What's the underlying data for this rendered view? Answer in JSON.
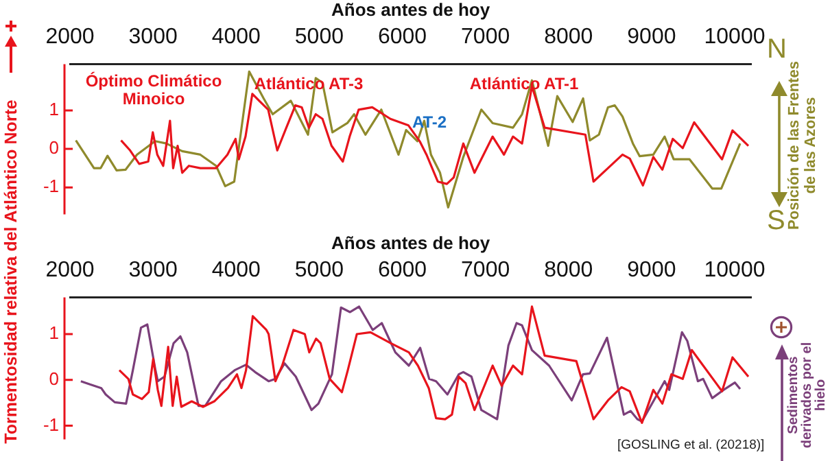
{
  "chart_data": [
    {
      "type": "line",
      "xlabel": "Años antes de hoy",
      "ylabel": "Tormentosidad relativa del Atlántico Norte",
      "xlim": [
        2000,
        10200
      ],
      "xticks": [
        2000,
        3000,
        4000,
        5000,
        6000,
        7000,
        8000,
        9000,
        10000
      ],
      "ylim": [
        -1.7,
        2.2
      ],
      "yticks": [
        -1,
        0,
        1
      ],
      "grid": false,
      "legend": "right",
      "marker": "none",
      "line_style": "solid",
      "series": [
        {
          "color": "#e8141c",
          "x": [
            2615,
            2724,
            2833,
            2942,
            2997,
            3051,
            3122,
            3204,
            3242,
            3296,
            3351,
            3432,
            3569,
            3759,
            3895,
            3993,
            4032,
            4113,
            4195,
            4277,
            4386,
            4495,
            4604,
            4713,
            4790,
            4876,
            4958,
            5039,
            5148,
            5284,
            5366,
            5475,
            5638,
            5856,
            6074,
            6209,
            6291,
            6427,
            6536,
            6619,
            6734,
            6869,
            7087,
            7223,
            7332,
            7441,
            7560,
            7713,
            8203,
            8301,
            8475,
            8650,
            8737,
            8896,
            9021,
            9130,
            9255,
            9375,
            9512,
            9848,
            9974,
            10165
          ],
          "values": [
            0.22,
            -0.04,
            -0.39,
            -0.33,
            0.43,
            -0.15,
            -0.44,
            0.73,
            -0.5,
            0.08,
            -0.62,
            -0.44,
            -0.5,
            -0.5,
            -0.15,
            0.26,
            -0.27,
            0.32,
            1.43,
            1.25,
            1.02,
            -0.04,
            0.55,
            1.13,
            1.08,
            0.55,
            0.9,
            0.78,
            0.08,
            -0.33,
            0.32,
            1.02,
            1.08,
            0.78,
            0.61,
            0.2,
            -0.15,
            -0.85,
            -0.91,
            -0.74,
            0.14,
            -0.62,
            0.32,
            -0.15,
            0.32,
            0.14,
            1.63,
            0.55,
            0.37,
            -0.85,
            -0.5,
            -0.15,
            -0.25,
            -0.95,
            -0.21,
            -0.54,
            0.26,
            0.02,
            0.69,
            -0.27,
            0.48,
            0.08
          ]
        },
        {
          "name": "Posición de las Frentes de las Azores",
          "color": "#8f8a2c",
          "x": [
            2071,
            2289,
            2370,
            2452,
            2561,
            2670,
            2806,
            3024,
            3160,
            3351,
            3569,
            3759,
            3868,
            3977,
            4157,
            4331,
            4440,
            4658,
            4865,
            4958,
            5039,
            5159,
            5338,
            5420,
            5556,
            5747,
            5954,
            6046,
            6182,
            6264,
            6345,
            6454,
            6552,
            6734,
            6951,
            7087,
            7332,
            7441,
            7560,
            7756,
            7865,
            8050,
            8176,
            8257,
            8366,
            8475,
            8557,
            8650,
            8775,
            8857,
            9021,
            9157,
            9266,
            9457,
            9730,
            9839,
            10066
          ],
          "values": [
            0.22,
            -0.5,
            -0.5,
            -0.18,
            -0.56,
            -0.54,
            -0.15,
            0.2,
            0.14,
            -0.06,
            -0.15,
            -0.44,
            -0.97,
            -0.85,
            2.01,
            1.31,
            0.9,
            1.25,
            0.37,
            1.84,
            1.72,
            0.43,
            0.67,
            0.9,
            0.37,
            1.02,
            -0.15,
            0.49,
            0.2,
            0.73,
            -0.15,
            -0.62,
            -1.52,
            -0.21,
            1.02,
            0.67,
            0.55,
            0.9,
            1.78,
            0.08,
            1.37,
            0.7,
            1.31,
            0.22,
            0.37,
            1.08,
            1.13,
            0.84,
            0.14,
            -0.19,
            -0.15,
            0.32,
            -0.27,
            -0.27,
            -1.03,
            -1.03,
            0.14
          ]
        }
      ],
      "annotations": [
        "Óptimo Climático Minoico",
        "Atlántico AT-3",
        "AT-2",
        "Atlántico AT-1",
        "N",
        "S"
      ]
    },
    {
      "type": "line",
      "xlabel": "Años antes de hoy",
      "xlim": [
        2000,
        10200
      ],
      "xticks": [
        2000,
        3000,
        4000,
        5000,
        6000,
        7000,
        8000,
        9000,
        10000
      ],
      "ylim": [
        -1.3,
        1.8
      ],
      "yticks": [
        -1,
        0,
        1
      ],
      "grid": false,
      "legend": "right",
      "marker": "none",
      "line_style": "solid",
      "series": [
        {
          "color": "#e8141c",
          "x": [
            2594,
            2703,
            2757,
            2866,
            2948,
            3002,
            3057,
            3100,
            3182,
            3236,
            3285,
            3340,
            3465,
            3601,
            3737,
            3901,
            4010,
            4064,
            4119,
            4200,
            4282,
            4364,
            4391,
            4473,
            4554,
            4690,
            4826,
            4880,
            4962,
            5017,
            5126,
            5273,
            5344,
            5453,
            5617,
            5862,
            6079,
            6188,
            6318,
            6406,
            6515,
            6597,
            6679,
            6761,
            6869,
            7087,
            7196,
            7332,
            7441,
            7560,
            7713,
            8094,
            8301,
            8475,
            8638,
            8737,
            8884,
            9021,
            9130,
            9239,
            9375,
            9484,
            9848,
            9974,
            10165
          ],
          "values": [
            0.21,
            0.02,
            -0.32,
            -0.42,
            -0.27,
            0.46,
            -0.22,
            -0.57,
            0.72,
            -0.57,
            0.07,
            -0.59,
            -0.47,
            -0.59,
            -0.47,
            -0.18,
            0.12,
            -0.18,
            0.21,
            1.39,
            1.24,
            1.09,
            1.0,
            -0.03,
            0.31,
            1.09,
            1.0,
            0.6,
            0.9,
            0.8,
            0.02,
            -0.27,
            0.21,
            1.0,
            1.04,
            0.8,
            0.6,
            0.31,
            -0.18,
            -0.84,
            -0.86,
            -0.76,
            0.07,
            -0.07,
            -0.66,
            0.31,
            -0.13,
            0.31,
            0.12,
            1.6,
            0.53,
            0.41,
            -0.86,
            -0.45,
            -0.16,
            -0.25,
            -0.94,
            -0.22,
            -0.52,
            0.12,
            0.02,
            0.65,
            -0.25,
            0.49,
            0.07
          ]
        },
        {
          "name": "Sedimentos derivados por el hielo",
          "color": "#7b3f7a",
          "x": [
            2131,
            2240,
            2376,
            2430,
            2539,
            2675,
            2757,
            2855,
            2931,
            3029,
            3057,
            3138,
            3247,
            3329,
            3411,
            3547,
            3628,
            3819,
            3982,
            4119,
            4228,
            4391,
            4473,
            4582,
            4718,
            4908,
            4990,
            5153,
            5262,
            5371,
            5480,
            5644,
            5753,
            5916,
            6079,
            6215,
            6324,
            6406,
            6543,
            6679,
            6734,
            6832,
            6951,
            7141,
            7277,
            7375,
            7441,
            7560,
            7767,
            8039,
            8175,
            8257,
            8464,
            8666,
            8747,
            8829,
            8884,
            9021,
            9157,
            9212,
            9366,
            9430,
            9557,
            9621,
            9730,
            9866,
            10003,
            10066
          ],
          "values": [
            -0.03,
            -0.1,
            -0.18,
            -0.32,
            -0.49,
            -0.52,
            0.21,
            1.14,
            1.21,
            0.21,
            -0.03,
            0.07,
            0.8,
            0.95,
            0.6,
            -0.57,
            -0.57,
            -0.03,
            0.21,
            0.33,
            0.17,
            -0.03,
            0.02,
            0.36,
            0.07,
            -0.66,
            -0.52,
            0.12,
            1.58,
            1.48,
            1.6,
            1.09,
            1.24,
            0.6,
            0.31,
            0.7,
            0.02,
            -0.03,
            -0.32,
            0.12,
            0.17,
            0.07,
            -0.66,
            -0.86,
            0.75,
            1.24,
            1.19,
            0.65,
            0.31,
            -0.45,
            0.12,
            0.14,
            0.92,
            -0.76,
            -0.68,
            -0.86,
            -0.91,
            -0.47,
            -0.03,
            -0.22,
            1.04,
            0.85,
            -0.03,
            0.02,
            -0.4,
            -0.22,
            -0.06,
            -0.2
          ]
        }
      ],
      "annotations": [
        "[GOSLING et al. (20218)]"
      ]
    }
  ]
}
